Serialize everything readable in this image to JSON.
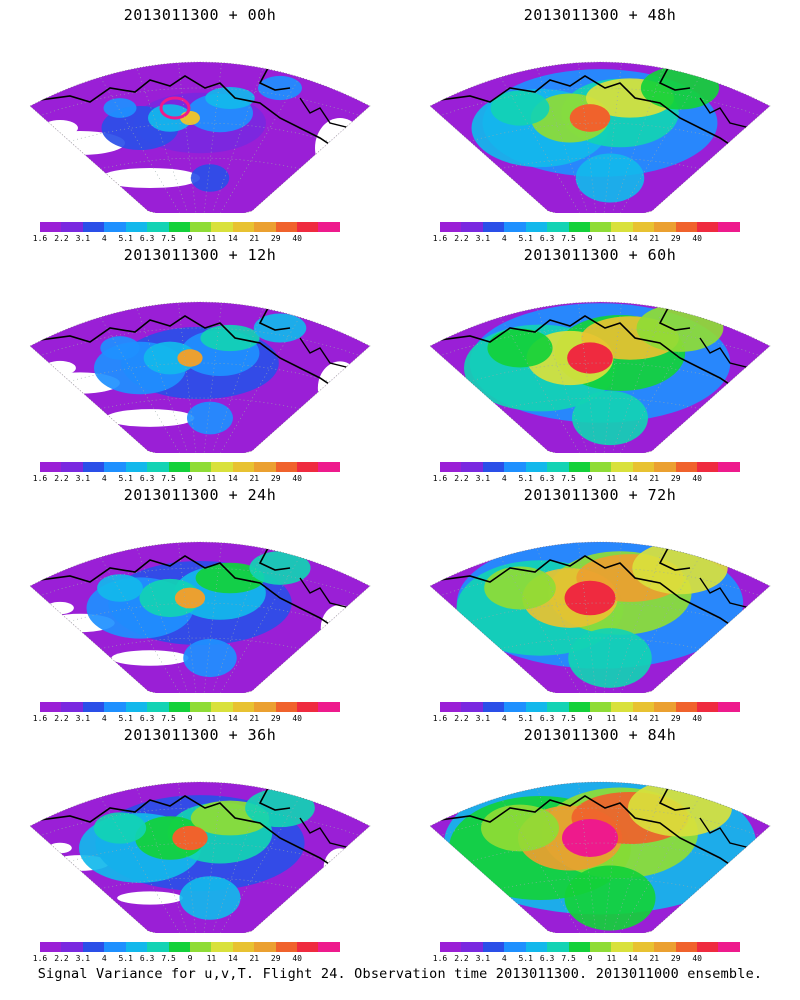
{
  "panels": [
    {
      "title": "2013011300 + 00h",
      "lead_h": 0
    },
    {
      "title": "2013011300 + 48h",
      "lead_h": 48
    },
    {
      "title": "2013011300 + 12h",
      "lead_h": 12
    },
    {
      "title": "2013011300 + 60h",
      "lead_h": 60
    },
    {
      "title": "2013011300 + 24h",
      "lead_h": 24
    },
    {
      "title": "2013011300 + 72h",
      "lead_h": 72
    },
    {
      "title": "2013011300 + 36h",
      "lead_h": 36
    },
    {
      "title": "2013011300 + 84h",
      "lead_h": 84
    }
  ],
  "colorbar": {
    "labels": [
      "1.6",
      "2.2",
      "3.1",
      "4",
      "5.1",
      "6.3",
      "7.5",
      "9",
      "11",
      "14",
      "21",
      "29",
      "40"
    ],
    "colors": [
      "#9a1fd6",
      "#7a28e0",
      "#2a4fe8",
      "#1e90ff",
      "#12b8ec",
      "#12d3b4",
      "#13d13a",
      "#8fdc35",
      "#d9e13c",
      "#e8c231",
      "#eba030",
      "#f0622c",
      "#ef2a3f",
      "#ee1a8c"
    ]
  },
  "caption": "Signal Variance for u,v,T. Flight 24. Observation time 2013011300. 2013011000 ensemble."
}
